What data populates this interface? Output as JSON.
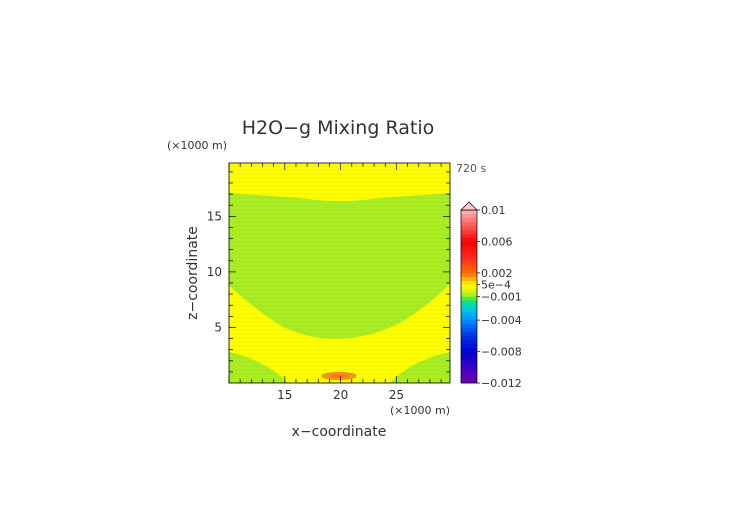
{
  "chart_data": {
    "type": "heatmap",
    "title": "H2O−g Mixing Ratio",
    "time_label": "720 s",
    "xlabel": "x−coordinate",
    "ylabel": "z−coordinate",
    "x_unit": "(×1000 m)",
    "y_unit": "(×1000 m)",
    "xlim": [
      10,
      29.8
    ],
    "ylim": [
      0,
      19.8
    ],
    "x_ticks": [
      15,
      20,
      25
    ],
    "y_ticks": [
      5,
      10,
      15
    ],
    "x_tick_labels": [
      "15",
      "20",
      "25"
    ],
    "y_tick_labels": [
      "5",
      "10",
      "15"
    ],
    "colorbar": {
      "min": -0.012,
      "max": 0.01,
      "labels": [
        {
          "value": 0.01,
          "text": "0.01"
        },
        {
          "value": 0.006,
          "text": "0.006"
        },
        {
          "value": 0.002,
          "text": "0.002"
        },
        {
          "value": 0.0005,
          "text": "5e−4"
        },
        {
          "value": -0.001,
          "text": "−0.001"
        },
        {
          "value": -0.004,
          "text": "−0.004"
        },
        {
          "value": -0.008,
          "text": "−0.008"
        },
        {
          "value": -0.012,
          "text": "−0.012"
        }
      ]
    },
    "colors": {
      "yellow_band": "#ffff00",
      "green_band": "#aaee22",
      "orange_spot": "#ff9922"
    }
  }
}
